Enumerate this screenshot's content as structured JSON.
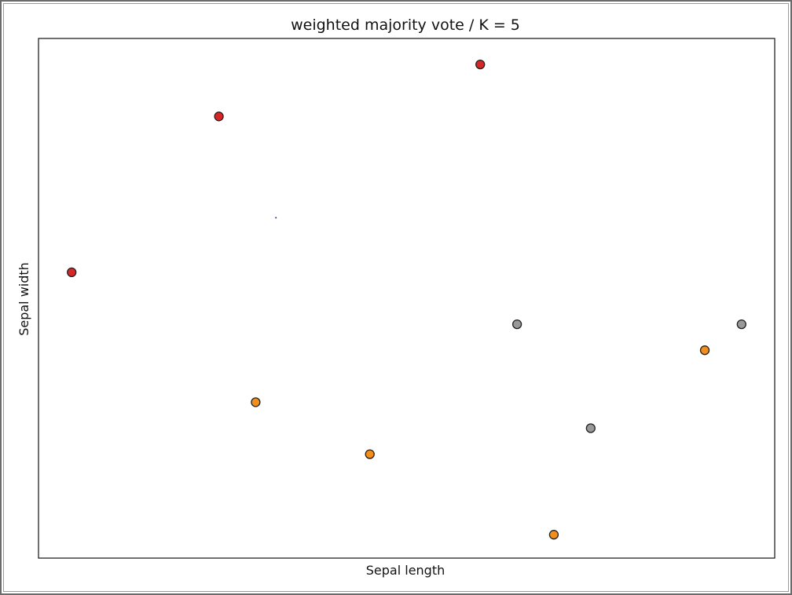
{
  "chart_data": {
    "type": "scatter",
    "title": "weighted majority vote / K = 5",
    "xlabel": "Sepal length",
    "ylabel": "Sepal width",
    "xlim": [
      0,
      20
    ],
    "ylim": [
      0,
      10
    ],
    "grid": false,
    "ticks_visible": false,
    "series": [
      {
        "color": "#d62728",
        "points": [
          {
            "x": 0.9,
            "y": 5.5
          },
          {
            "x": 4.9,
            "y": 8.5
          },
          {
            "x": 12.0,
            "y": 9.5
          }
        ]
      },
      {
        "color": "#f28e1c",
        "points": [
          {
            "x": 5.9,
            "y": 3.0
          },
          {
            "x": 9.0,
            "y": 2.0
          },
          {
            "x": 14.0,
            "y": 0.45
          },
          {
            "x": 18.1,
            "y": 4.0
          }
        ]
      },
      {
        "color": "#999999",
        "points": [
          {
            "x": 13.0,
            "y": 4.5
          },
          {
            "x": 15.0,
            "y": 2.5
          },
          {
            "x": 19.1,
            "y": 4.5
          }
        ]
      },
      {
        "color": "#1f1fbf",
        "marker": "tiny",
        "points": [
          {
            "x": 6.45,
            "y": 6.55
          }
        ]
      }
    ]
  }
}
